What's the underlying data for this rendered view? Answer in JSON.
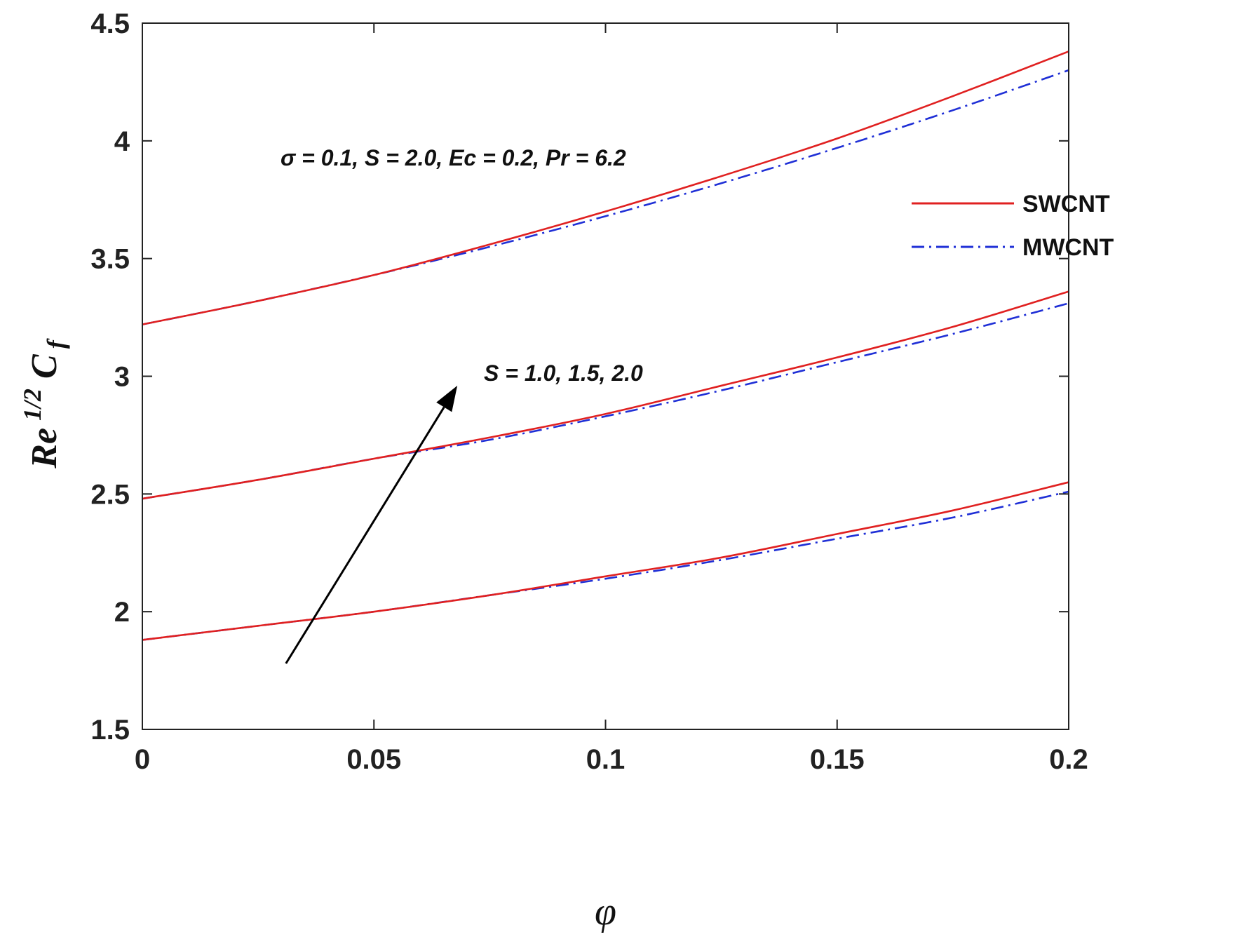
{
  "chart_data": {
    "type": "line",
    "xlabel": "φ",
    "ylabel": {
      "base": "Re",
      "sup": "1/2",
      "tail": "C",
      "sub": "f"
    },
    "xlim": [
      0,
      0.2
    ],
    "ylim": [
      1.5,
      4.5
    ],
    "xticks": [
      0,
      0.05,
      0.1,
      0.15,
      0.2
    ],
    "xtick_labels": [
      "0",
      "0.05",
      "0.1",
      "0.15",
      "0.2"
    ],
    "yticks": [
      1.5,
      2,
      2.5,
      3,
      3.5,
      4,
      4.5
    ],
    "ytick_labels": [
      "1.5",
      "2",
      "2.5",
      "3",
      "3.5",
      "4",
      "4.5"
    ],
    "grid": false,
    "legend_position": "top-right",
    "legend": [
      {
        "label": "SWCNT",
        "color": "#e02020",
        "style": "solid"
      },
      {
        "label": "MWCNT",
        "color": "#1f2fd6",
        "style": "dashdot"
      }
    ],
    "annotations": {
      "params": "σ = 0.1, S = 2.0, Ec = 0.2, Pr = 6.2",
      "arrow_label": "S = 1.0, 1.5, 2.0"
    },
    "arrow": {
      "from": [
        0.031,
        1.78
      ],
      "to": [
        0.068,
        2.96
      ]
    },
    "x": [
      0,
      0.025,
      0.05,
      0.075,
      0.1,
      0.125,
      0.15,
      0.175,
      0.2
    ],
    "series": [
      {
        "name": "SWCNT",
        "group": "S = 1.0",
        "values": [
          1.88,
          1.94,
          2.0,
          2.07,
          2.15,
          2.23,
          2.33,
          2.43,
          2.55
        ]
      },
      {
        "name": "MWCNT",
        "group": "S = 1.0",
        "values": [
          1.88,
          1.94,
          2.0,
          2.07,
          2.14,
          2.22,
          2.31,
          2.4,
          2.51
        ]
      },
      {
        "name": "SWCNT",
        "group": "S = 1.5",
        "values": [
          2.48,
          2.56,
          2.65,
          2.74,
          2.84,
          2.96,
          3.08,
          3.21,
          3.36
        ]
      },
      {
        "name": "MWCNT",
        "group": "S = 1.5",
        "values": [
          2.48,
          2.56,
          2.65,
          2.73,
          2.83,
          2.94,
          3.06,
          3.18,
          3.31
        ]
      },
      {
        "name": "SWCNT",
        "group": "S = 2.0",
        "values": [
          3.22,
          3.32,
          3.43,
          3.56,
          3.7,
          3.85,
          4.01,
          4.19,
          4.38
        ]
      },
      {
        "name": "MWCNT",
        "group": "S = 2.0",
        "values": [
          3.22,
          3.32,
          3.43,
          3.55,
          3.68,
          3.82,
          3.97,
          4.13,
          4.3
        ]
      }
    ]
  }
}
